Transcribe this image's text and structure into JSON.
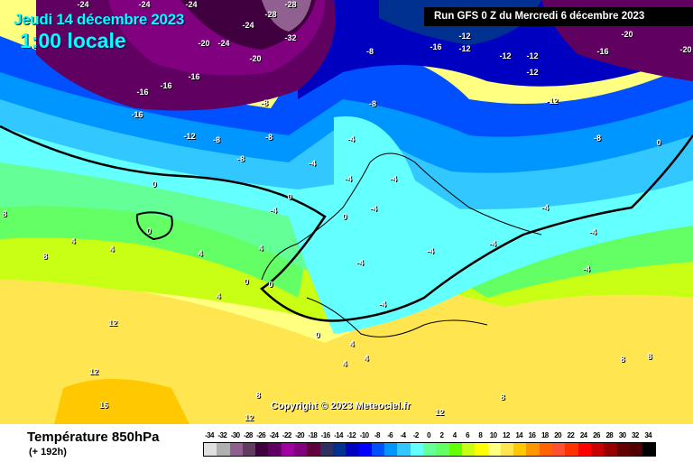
{
  "header": {
    "date": "Jeudi 14 décembre 2023",
    "hour": "1:00 locale",
    "run": "Run GFS 0 Z du Mercredi 6 décembre 2023"
  },
  "copyright": "Copyright © 2023 Meteociel.fr",
  "footer": {
    "title": "Température 850hPa",
    "subtitle": "(+ 192h)"
  },
  "legend": {
    "labels": [
      "-34",
      "-32",
      "-30",
      "-28",
      "-26",
      "-24",
      "-22",
      "-20",
      "-18",
      "-16",
      "-14",
      "-12",
      "-10",
      "-8",
      "-6",
      "-4",
      "-2",
      "0",
      "2",
      "4",
      "6",
      "8",
      "10",
      "12",
      "14",
      "16",
      "18",
      "20",
      "22",
      "24",
      "26",
      "28",
      "30",
      "32",
      "34"
    ],
    "colors": [
      "#e0e0e0",
      "#b0b0b0",
      "#906090",
      "#603c60",
      "#400040",
      "#600060",
      "#a000a0",
      "#800080",
      "#600040",
      "#303060",
      "#003090",
      "#0000c0",
      "#0000ff",
      "#0050ff",
      "#0096ff",
      "#32c8ff",
      "#64ffff",
      "#64ff96",
      "#64ff64",
      "#64ff00",
      "#c8ff14",
      "#ffff00",
      "#ffff80",
      "#ffe650",
      "#ffc800",
      "#ff9600",
      "#ff6400",
      "#ff5032",
      "#ff3200",
      "#ff0000",
      "#c80000",
      "#960000",
      "#640000",
      "#500000",
      "#000000"
    ]
  },
  "contour_labels": [
    "-24",
    "-24",
    "-24",
    "-28",
    "-24",
    "-24",
    "-28",
    "-32",
    "-20",
    "-20",
    "-16",
    "-16",
    "-16",
    "-16",
    "-12",
    "-12",
    "-12",
    "-12",
    "-12",
    "-12",
    "-8",
    "-8",
    "-8",
    "-8",
    "-8",
    "-8",
    "-16",
    "-16",
    "-20",
    "-20",
    "-4",
    "-4",
    "-4",
    "-4",
    "-4",
    "0",
    "0",
    "0",
    "0",
    "0",
    "4",
    "4",
    "4",
    "4",
    "4",
    "-12",
    "-8",
    "8",
    "8",
    "12",
    "12",
    "12",
    "12",
    "16",
    "8",
    "8",
    "8",
    "8",
    "0",
    "0",
    "0",
    "4",
    "4",
    "4",
    "-4",
    "-4",
    "-4",
    "-4",
    "-4",
    "-4",
    "-4",
    "-4"
  ]
}
